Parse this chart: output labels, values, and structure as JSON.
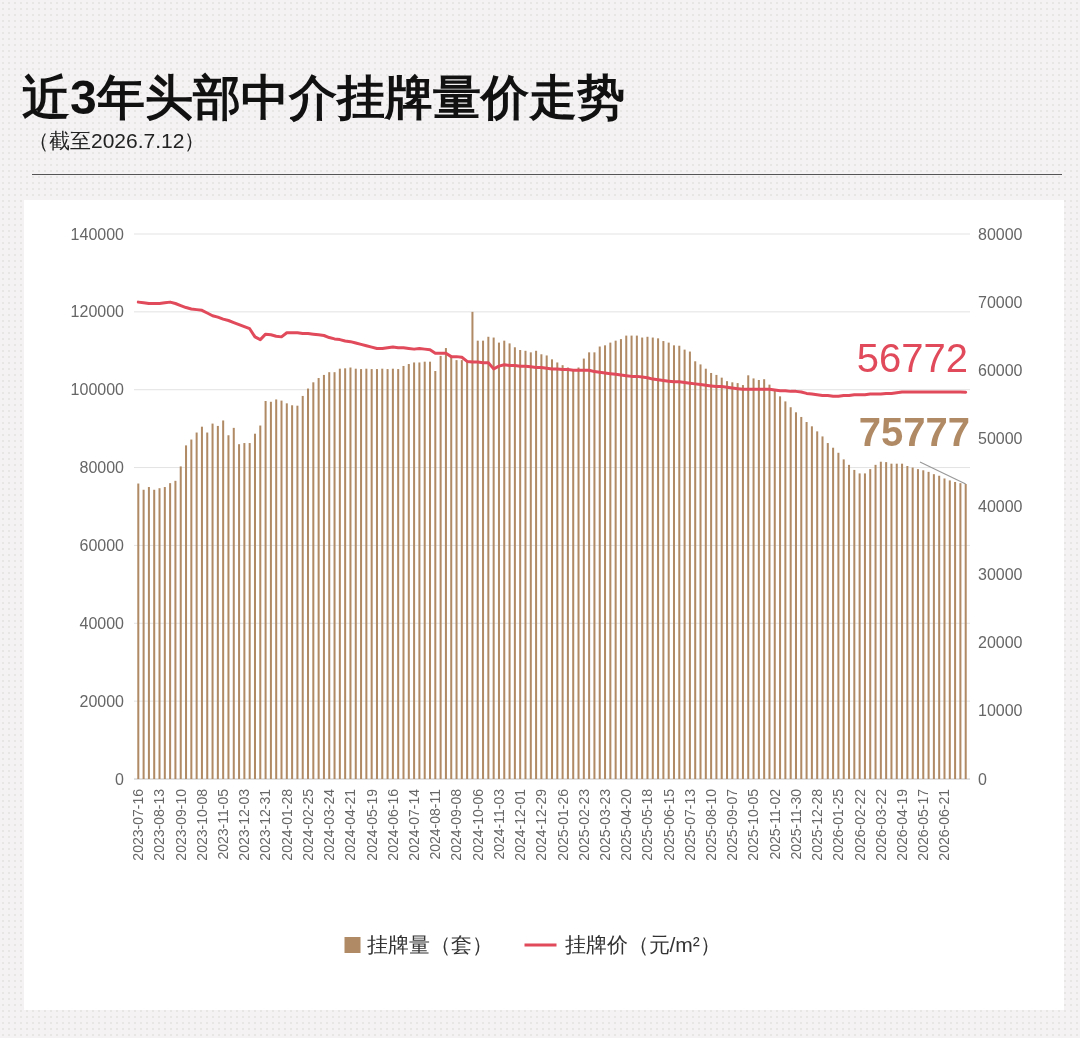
{
  "chart_data": {
    "type": "bar",
    "title": "近3年头部中介挂牌量价走势",
    "subtitle": "（截至2026.7.12）",
    "categories": [
      "2023-07-16",
      null,
      null,
      null,
      "2023-08-13",
      null,
      null,
      null,
      "2023-09-10",
      null,
      null,
      null,
      "2023-10-08",
      null,
      null,
      null,
      "2023-11-05",
      null,
      null,
      null,
      "2023-12-03",
      null,
      null,
      null,
      "2023-12-31",
      null,
      null,
      null,
      "2024-01-28",
      null,
      null,
      null,
      "2024-02-25",
      null,
      null,
      null,
      "2024-03-24",
      null,
      null,
      null,
      "2024-04-21",
      null,
      null,
      null,
      "2024-05-19",
      null,
      null,
      null,
      "2024-06-16",
      null,
      null,
      null,
      "2024-07-14",
      null,
      null,
      null,
      "2024-08-11",
      null,
      null,
      null,
      "2024-09-08",
      null,
      null,
      null,
      "2024-10-06",
      null,
      null,
      null,
      "2024-11-03",
      null,
      null,
      null,
      "2024-12-01",
      null,
      null,
      null,
      "2024-12-29",
      null,
      null,
      null,
      "2025-01-26",
      null,
      null,
      null,
      "2025-02-23",
      null,
      null,
      null,
      "2025-03-23",
      null,
      null,
      null,
      "2025-04-20",
      null,
      null,
      null,
      "2025-05-18",
      null,
      null,
      null,
      "2025-06-15",
      null,
      null,
      null,
      "2025-07-13",
      null,
      null,
      null,
      "2025-08-10",
      null,
      null,
      null,
      "2025-09-07",
      null,
      null,
      null,
      "2025-10-05",
      null,
      null,
      null,
      "2025-11-02",
      null,
      null,
      null,
      "2025-11-30",
      null,
      null,
      null,
      "2025-12-28",
      null,
      null,
      null,
      "2026-01-25",
      null,
      null,
      null,
      "2026-02-22",
      null,
      null,
      null,
      "2026-03-22",
      null,
      null,
      null,
      "2026-04-19",
      null,
      null,
      null,
      "2026-05-17",
      null,
      null,
      null,
      "2026-06-21",
      null,
      null,
      null,
      null
    ],
    "series": [
      {
        "name": "挂牌量（套）",
        "color": "#b08a64",
        "values": [
          75900,
          74300,
          75000,
          74300,
          74700,
          75000,
          76000,
          76600,
          80300,
          85700,
          87200,
          89000,
          90500,
          89000,
          91300,
          90700,
          92100,
          88300,
          90200,
          86000,
          86300,
          86300,
          88700,
          90800,
          97100,
          96900,
          97500,
          97200,
          96500,
          96000,
          95900,
          98400,
          100300,
          101900,
          103000,
          103800,
          104500,
          104500,
          105400,
          105500,
          105700,
          105400,
          105300,
          105400,
          105300,
          105300,
          105400,
          105300,
          105400,
          105300,
          106100,
          106600,
          107000,
          107000,
          107200,
          107200,
          104800,
          108700,
          110700,
          108400,
          107600,
          107600,
          107600,
          120000,
          112600,
          112600,
          113600,
          113400,
          112100,
          112600,
          111900,
          110900,
          110200,
          110000,
          109600,
          110000,
          109100,
          108800,
          107800,
          107000,
          106300,
          105700,
          105300,
          105700,
          108000,
          109600,
          109600,
          111100,
          111400,
          112100,
          112600,
          113000,
          113900,
          113900,
          113900,
          113400,
          113600,
          113400,
          113200,
          112500,
          112100,
          111400,
          111300,
          110300,
          109800,
          107300,
          106500,
          105400,
          104300,
          103800,
          103100,
          102200,
          101900,
          101700,
          101200,
          103700,
          102900,
          102500,
          102700,
          101300,
          100100,
          98300,
          97000,
          95500,
          94200,
          93000,
          91700,
          90600,
          89300,
          88000,
          86300,
          85100,
          83800,
          82100,
          80700,
          79400,
          78500,
          78500,
          79600,
          80700,
          81500,
          81400,
          81000,
          81000,
          81000,
          80400,
          80000,
          79600,
          79300,
          78900,
          78300,
          77900,
          77200,
          76700,
          76300,
          76000,
          75777
        ]
      },
      {
        "name": "挂牌价（元/m²）",
        "type": "line",
        "axis": "y2",
        "color": "#e04a5a",
        "values": [
          70000,
          69900,
          69800,
          69800,
          69800,
          69900,
          70000,
          69800,
          69500,
          69200,
          69000,
          68900,
          68800,
          68400,
          68000,
          67800,
          67500,
          67300,
          67000,
          66700,
          66400,
          66100,
          64900,
          64500,
          65300,
          65200,
          65000,
          64900,
          65500,
          65500,
          65500,
          65400,
          65400,
          65300,
          65200,
          65100,
          64800,
          64600,
          64500,
          64300,
          64200,
          64000,
          63800,
          63600,
          63400,
          63200,
          63200,
          63300,
          63400,
          63300,
          63300,
          63200,
          63100,
          63200,
          63100,
          63000,
          62500,
          62500,
          62500,
          62000,
          62000,
          61900,
          61300,
          61200,
          61200,
          61100,
          61100,
          60200,
          60600,
          60800,
          60700,
          60700,
          60600,
          60600,
          60500,
          60400,
          60400,
          60300,
          60200,
          60200,
          60100,
          60100,
          60000,
          60000,
          60000,
          60000,
          59800,
          59700,
          59600,
          59500,
          59400,
          59300,
          59200,
          59100,
          59100,
          59000,
          58900,
          58700,
          58600,
          58500,
          58400,
          58300,
          58300,
          58200,
          58100,
          58000,
          57900,
          57800,
          57700,
          57600,
          57600,
          57500,
          57400,
          57300,
          57200,
          57200,
          57200,
          57200,
          57200,
          57200,
          57100,
          57000,
          57000,
          56900,
          56900,
          56800,
          56600,
          56500,
          56400,
          56300,
          56300,
          56200,
          56200,
          56300,
          56300,
          56400,
          56400,
          56400,
          56500,
          56500,
          56500,
          56600,
          56600,
          56700,
          56800,
          56800,
          56800,
          56800,
          56800,
          56800,
          56800,
          56800,
          56800,
          56800,
          56800,
          56800,
          56772
        ]
      }
    ],
    "ylim": [
      0,
      140000
    ],
    "yticks": [
      0,
      20000,
      40000,
      60000,
      80000,
      100000,
      120000,
      140000
    ],
    "y2lim": [
      0,
      80000
    ],
    "y2ticks": [
      0,
      10000,
      20000,
      30000,
      40000,
      50000,
      60000,
      70000,
      80000
    ],
    "annotations": [
      "56772",
      "75777"
    ],
    "grid": "y",
    "legend": "bottom"
  }
}
